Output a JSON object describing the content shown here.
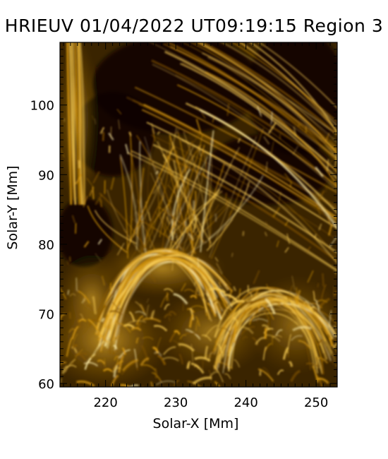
{
  "figure": {
    "title": "HRIEUV 01/04/2022 UT09:19:15 Region 3",
    "xlabel": "Solar-X [Mm]",
    "ylabel": "Solar-Y [Mm]",
    "colormap": [
      "#000000",
      "#3a2400",
      "#8a5a00",
      "#d89a10",
      "#f4c850",
      "#fff2b0"
    ],
    "frame_color": "#000000"
  },
  "axes": {
    "xlim": [
      213.5,
      253.0
    ],
    "ylim": [
      59.5,
      109.0
    ],
    "x_major": [
      {
        "v": 220,
        "label": "220"
      },
      {
        "v": 230,
        "label": "230"
      },
      {
        "v": 240,
        "label": "240"
      },
      {
        "v": 250,
        "label": "250"
      }
    ],
    "y_major": [
      {
        "v": 60,
        "label": "60"
      },
      {
        "v": 70,
        "label": "70"
      },
      {
        "v": 80,
        "label": "80"
      },
      {
        "v": 90,
        "label": "90"
      },
      {
        "v": 100,
        "label": "100"
      }
    ],
    "minor_step": 1
  }
}
